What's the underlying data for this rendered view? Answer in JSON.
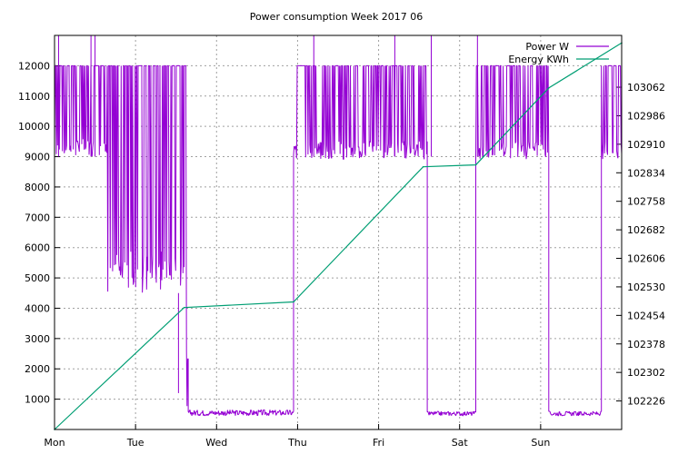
{
  "chart_data": {
    "type": "line",
    "title": "Power consumption Week 2017 06",
    "xlabel": "",
    "ylabel": "",
    "y2label": "",
    "xlim": [
      0,
      7
    ],
    "x_ticks": [
      {
        "x": 0,
        "label": "Mon"
      },
      {
        "x": 1,
        "label": "Tue"
      },
      {
        "x": 2,
        "label": "Wed"
      },
      {
        "x": 3,
        "label": "Thu"
      },
      {
        "x": 4,
        "label": "Fri"
      },
      {
        "x": 5,
        "label": "Sat"
      },
      {
        "x": 6,
        "label": "Sun"
      }
    ],
    "ylim": [
      0,
      13000
    ],
    "y_ticks": [
      1000,
      2000,
      3000,
      4000,
      5000,
      6000,
      7000,
      8000,
      9000,
      10000,
      11000,
      12000
    ],
    "y2lim": [
      102150,
      103200
    ],
    "y2_ticks": [
      102226,
      102302,
      102378,
      102454,
      102530,
      102606,
      102682,
      102758,
      102834,
      102910,
      102986,
      103062
    ],
    "grid": true,
    "legend_position": "top-right",
    "series": [
      {
        "name": "Power W",
        "axis": "left",
        "color": "#9400d3",
        "style": "dense",
        "segments": [
          {
            "x0": 0.0,
            "x1": 0.65,
            "low": 9000,
            "high": 12000
          },
          {
            "x0": 0.65,
            "x1": 1.6,
            "low": 4500,
            "high": 12000
          },
          {
            "x0": 1.6,
            "x1": 1.65,
            "low": 500,
            "high": 12000
          },
          {
            "x0": 1.65,
            "x1": 2.95,
            "low": 450,
            "high": 650
          },
          {
            "x0": 2.95,
            "x1": 4.6,
            "low": 8900,
            "high": 12000
          },
          {
            "x0": 4.6,
            "x1": 5.2,
            "low": 450,
            "high": 600
          },
          {
            "x0": 5.2,
            "x1": 6.1,
            "low": 8900,
            "high": 12000
          },
          {
            "x0": 6.1,
            "x1": 6.75,
            "low": 450,
            "high": 600
          },
          {
            "x0": 6.75,
            "x1": 7.0,
            "low": 8900,
            "high": 12000
          }
        ],
        "spikes": [
          {
            "x": 0.05,
            "y": 13000
          },
          {
            "x": 0.45,
            "y": 13000
          },
          {
            "x": 0.5,
            "y": 13000
          },
          {
            "x": 1.53,
            "y": 1200
          },
          {
            "x": 3.2,
            "y": 13000
          },
          {
            "x": 4.2,
            "y": 13000
          },
          {
            "x": 4.65,
            "y": 13000
          },
          {
            "x": 5.22,
            "y": 13000
          }
        ]
      },
      {
        "name": "Energy KWh",
        "axis": "right",
        "color": "#009e73",
        "style": "line",
        "x": [
          0.0,
          1.6,
          2.95,
          4.55,
          5.2,
          6.1,
          7.0
        ],
        "y": [
          102150,
          102475,
          102490,
          102850,
          102855,
          103060,
          103180
        ]
      }
    ]
  }
}
